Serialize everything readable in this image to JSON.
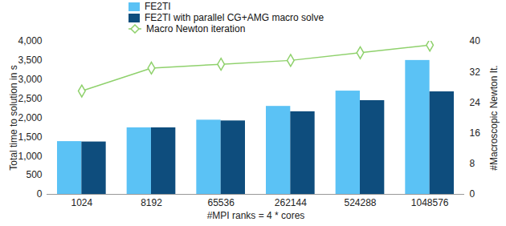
{
  "chart_data": {
    "type": "bar",
    "categories": [
      "1024",
      "8192",
      "65536",
      "262144",
      "524288",
      "1048576"
    ],
    "xlabel": "#MPI ranks = 4 * cores",
    "ylabel": "Total time to solution in s",
    "y2label": "#Macroscopic Newton It.",
    "ylim": [
      0,
      4000
    ],
    "yticks": [
      0,
      500,
      1000,
      1500,
      2000,
      2500,
      3000,
      3500,
      4000
    ],
    "y2lim": [
      0,
      40
    ],
    "y2ticks": [
      0,
      8,
      16,
      24,
      32,
      40
    ],
    "grid": false,
    "legend": "top",
    "series": [
      {
        "name": "FE2TI",
        "color": "#5bc2f5",
        "values": [
          1380,
          1740,
          1940,
          2300,
          2700,
          3500
        ]
      },
      {
        "name": "FE2TI with parallel CG+AMG macro solve",
        "color": "#0e4d7d",
        "values": [
          1370,
          1740,
          1920,
          2160,
          2450,
          2680
        ]
      },
      {
        "name": "Macro Newton iteration",
        "type": "line",
        "axis": "y2",
        "color": "#8fd16c",
        "marker": "diamond",
        "values": [
          27,
          33,
          34,
          35,
          37,
          39
        ]
      }
    ]
  }
}
